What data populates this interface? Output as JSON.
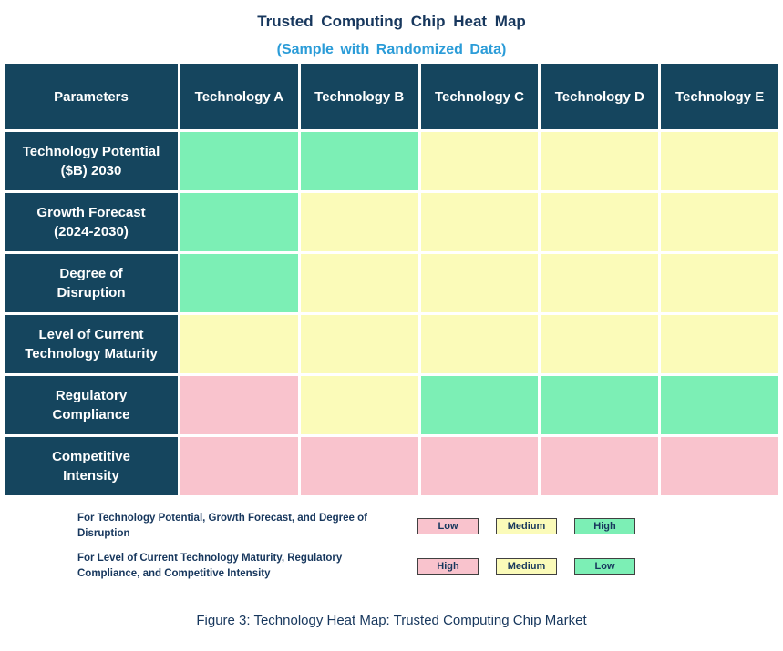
{
  "title": "Trusted Computing Chip Heat Map",
  "subtitle": "(Sample with Randomized Data)",
  "caption": "Figure 3: Technology Heat Map: Trusted Computing Chip Market",
  "colors": {
    "header_bg": "#15455E",
    "title_text": "#17375D",
    "subtitle_text": "#2B9CD8",
    "green": "#7CEFB5",
    "yellow": "#FBFBB9",
    "pink": "#F9C3CD",
    "swatch_border": "#404040"
  },
  "chart_data": {
    "type": "heatmap",
    "columns": [
      "Parameters",
      "Technology A",
      "Technology B",
      "Technology C",
      "Technology D",
      "Technology E"
    ],
    "rows": [
      {
        "label": "Technology Potential ($B) 2030",
        "label_lines": [
          "Technology Potential",
          "($B) 2030"
        ],
        "cells": [
          "green",
          "green",
          "yellow",
          "yellow",
          "yellow"
        ],
        "levels": [
          "High",
          "High",
          "Medium",
          "Medium",
          "Medium"
        ]
      },
      {
        "label": "Growth Forecast (2024-2030)",
        "label_lines": [
          "Growth Forecast",
          "(2024-2030)"
        ],
        "cells": [
          "green",
          "yellow",
          "yellow",
          "yellow",
          "yellow"
        ],
        "levels": [
          "High",
          "Medium",
          "Medium",
          "Medium",
          "Medium"
        ]
      },
      {
        "label": "Degree of Disruption",
        "label_lines": [
          "Degree of",
          "Disruption"
        ],
        "cells": [
          "green",
          "yellow",
          "yellow",
          "yellow",
          "yellow"
        ],
        "levels": [
          "High",
          "Medium",
          "Medium",
          "Medium",
          "Medium"
        ]
      },
      {
        "label": "Level of Current Technology Maturity",
        "label_lines": [
          "Level of Current",
          "Technology Maturity"
        ],
        "cells": [
          "yellow",
          "yellow",
          "yellow",
          "yellow",
          "yellow"
        ],
        "levels": [
          "Medium",
          "Medium",
          "Medium",
          "Medium",
          "Medium"
        ]
      },
      {
        "label": "Regulatory Compliance",
        "label_lines": [
          "Regulatory",
          "Compliance"
        ],
        "cells": [
          "pink",
          "yellow",
          "green",
          "green",
          "green"
        ],
        "levels": [
          "High",
          "Medium",
          "Low",
          "Low",
          "Low"
        ]
      },
      {
        "label": "Competitive Intensity",
        "label_lines": [
          "Competitive",
          "Intensity"
        ],
        "cells": [
          "pink",
          "pink",
          "pink",
          "pink",
          "pink"
        ],
        "levels": [
          "High",
          "High",
          "High",
          "High",
          "High"
        ]
      }
    ],
    "legend": [
      {
        "text": "For Technology Potential, Growth Forecast, and Degree of Disruption",
        "entries": [
          {
            "label": "Low",
            "color": "pink"
          },
          {
            "label": "Medium",
            "color": "yellow"
          },
          {
            "label": "High",
            "color": "green"
          }
        ]
      },
      {
        "text": "For Level of Current Technology Maturity, Regulatory Compliance, and Competitive Intensity",
        "entries": [
          {
            "label": "High",
            "color": "pink"
          },
          {
            "label": "Medium",
            "color": "yellow"
          },
          {
            "label": "Low",
            "color": "green"
          }
        ]
      }
    ]
  }
}
